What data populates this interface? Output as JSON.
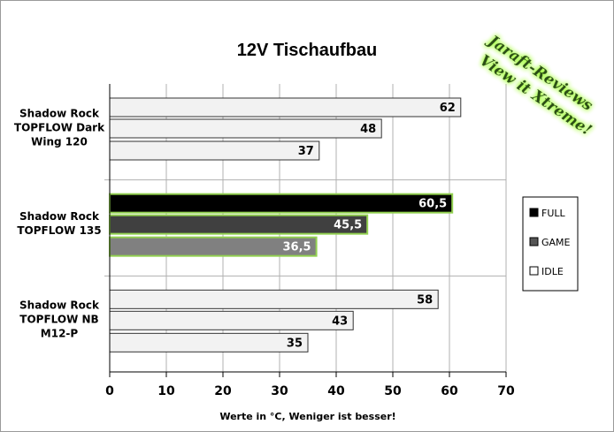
{
  "chart_data": {
    "type": "bar",
    "orientation": "horizontal",
    "title": "12V Tischaufbau",
    "xlabel": "Werte in °C, Weniger ist besser!",
    "ylabel": "",
    "xlim": [
      0,
      70
    ],
    "x_ticks": [
      "0",
      "10",
      "20",
      "30",
      "40",
      "50",
      "60",
      "70"
    ],
    "grid": "vertical",
    "legend_position": "right",
    "categories": [
      {
        "lines": [
          "Shadow Rock",
          "TOPFLOW Dark",
          "Wing 120"
        ],
        "highlight": false
      },
      {
        "lines": [
          "Shadow Rock",
          "TOPFLOW 135"
        ],
        "highlight": true
      },
      {
        "lines": [
          "Shadow Rock",
          "TOPFLOW NB",
          "M12-P"
        ],
        "highlight": false
      }
    ],
    "series": [
      {
        "name": "FULL",
        "values": [
          62,
          60.5,
          58
        ],
        "labels": [
          "62",
          "60,5",
          "58"
        ],
        "color": "#000000"
      },
      {
        "name": "GAME",
        "values": [
          48,
          45.5,
          43
        ],
        "labels": [
          "48",
          "45,5",
          "43"
        ],
        "color": "#404040"
      },
      {
        "name": "IDLE",
        "values": [
          37,
          36.5,
          35
        ],
        "labels": [
          "37",
          "36,5",
          "35"
        ],
        "color": "#808080"
      }
    ],
    "plain_bar_color": "#f2f2f2",
    "highlight_border_color": "#92d050",
    "legend_swatch_colors": [
      "#000000",
      "#555555",
      "#ffffff"
    ]
  },
  "watermark": {
    "line1": "Jaraft-Reviews",
    "line2": "View it Xtreme!"
  }
}
